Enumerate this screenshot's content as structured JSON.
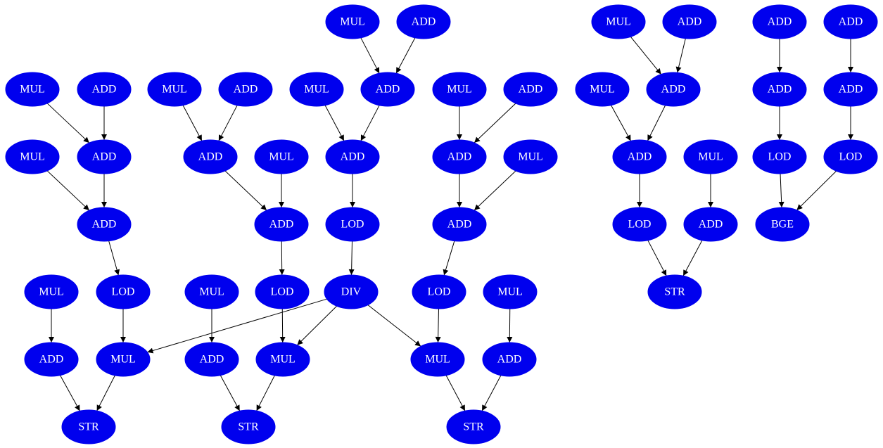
{
  "nodes": [
    {
      "label": "MUL"
    },
    {
      "label": "ADD"
    },
    {
      "label": "MUL"
    },
    {
      "label": "ADD"
    },
    {
      "label": "ADD"
    },
    {
      "label": "ADD"
    },
    {
      "label": "MUL"
    },
    {
      "label": "ADD"
    },
    {
      "label": "MUL"
    },
    {
      "label": "ADD"
    },
    {
      "label": "MUL"
    },
    {
      "label": "ADD"
    },
    {
      "label": "MUL"
    },
    {
      "label": "ADD"
    },
    {
      "label": "MUL"
    },
    {
      "label": "ADD"
    },
    {
      "label": "ADD"
    },
    {
      "label": "ADD"
    },
    {
      "label": "MUL"
    },
    {
      "label": "ADD"
    },
    {
      "label": "ADD"
    },
    {
      "label": "MUL"
    },
    {
      "label": "ADD"
    },
    {
      "label": "ADD"
    },
    {
      "label": "MUL"
    },
    {
      "label": "ADD"
    },
    {
      "label": "MUL"
    },
    {
      "label": "LOD"
    },
    {
      "label": "LOD"
    },
    {
      "label": "ADD"
    },
    {
      "label": "ADD"
    },
    {
      "label": "LOD"
    },
    {
      "label": "ADD"
    },
    {
      "label": "LOD"
    },
    {
      "label": "ADD"
    },
    {
      "label": "BGE"
    },
    {
      "label": "MUL"
    },
    {
      "label": "LOD"
    },
    {
      "label": "MUL"
    },
    {
      "label": "LOD"
    },
    {
      "label": "DIV"
    },
    {
      "label": "LOD"
    },
    {
      "label": "MUL"
    },
    {
      "label": "STR"
    },
    {
      "label": "ADD"
    },
    {
      "label": "MUL"
    },
    {
      "label": "ADD"
    },
    {
      "label": "MUL"
    },
    {
      "label": "MUL"
    },
    {
      "label": "ADD"
    },
    {
      "label": "STR"
    },
    {
      "label": "STR"
    },
    {
      "label": "STR"
    }
  ]
}
